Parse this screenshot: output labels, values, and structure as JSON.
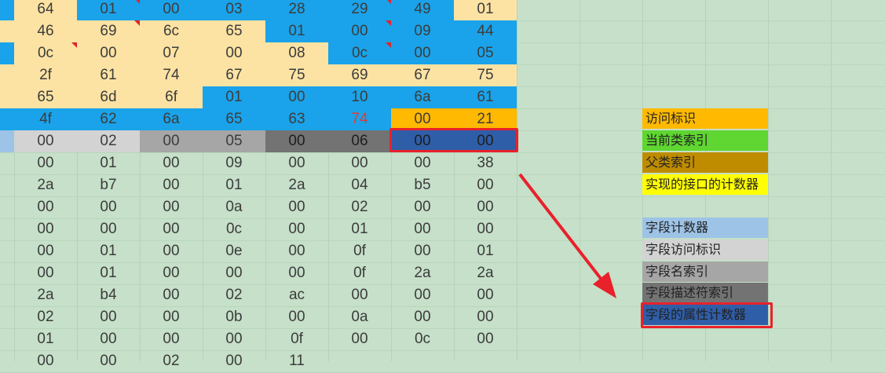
{
  "rows": [
    {
      "cells": [
        "64",
        "01",
        "00",
        "03",
        "28",
        "29",
        "49",
        "01"
      ],
      "bg": [
        "#fde3a3",
        "#1aa3ea",
        "#1aa3ea",
        "#1aa3ea",
        "#1aa3ea",
        "#1aa3ea",
        "#1aa3ea",
        "#fde3a3"
      ],
      "pre": "#1aa3ea",
      "flags": [
        1,
        5
      ]
    },
    {
      "cells": [
        "46",
        "69",
        "6c",
        "65",
        "01",
        "00",
        "09",
        "44"
      ],
      "bg": [
        "#fde3a3",
        "#fde3a3",
        "#fde3a3",
        "#fde3a3",
        "#1aa3ea",
        "#1aa3ea",
        "#1aa3ea",
        "#1aa3ea"
      ],
      "pre": "#fde3a3",
      "flags": [
        1,
        5
      ]
    },
    {
      "cells": [
        "0c",
        "00",
        "07",
        "00",
        "08",
        "0c",
        "00",
        "05"
      ],
      "bg": [
        "#fde3a3",
        "#fde3a3",
        "#fde3a3",
        "#fde3a3",
        "#fde3a3",
        "#1aa3ea",
        "#1aa3ea",
        "#1aa3ea"
      ],
      "pre": "#1aa3ea",
      "flags": [
        0,
        5
      ]
    },
    {
      "cells": [
        "2f",
        "61",
        "74",
        "67",
        "75",
        "69",
        "67",
        "75"
      ],
      "bg": [
        "#fde3a3",
        "#fde3a3",
        "#fde3a3",
        "#fde3a3",
        "#fde3a3",
        "#fde3a3",
        "#fde3a3",
        "#fde3a3"
      ],
      "pre": "#fde3a3",
      "flags": []
    },
    {
      "cells": [
        "65",
        "6d",
        "6f",
        "01",
        "00",
        "10",
        "6a",
        "61"
      ],
      "bg": [
        "#fde3a3",
        "#fde3a3",
        "#fde3a3",
        "#1aa3ea",
        "#1aa3ea",
        "#1aa3ea",
        "#1aa3ea",
        "#1aa3ea"
      ],
      "pre": "#fde3a3",
      "flags": []
    },
    {
      "cells": [
        "4f",
        "62",
        "6a",
        "65",
        "63",
        "74",
        "00",
        "21"
      ],
      "bg": [
        "#1aa3ea",
        "#1aa3ea",
        "#1aa3ea",
        "#1aa3ea",
        "#1aa3ea",
        "#1aa3ea",
        "#ffb900",
        "#ffb900"
      ],
      "pre": "#1aa3ea",
      "flags": [],
      "red": [
        5
      ]
    },
    {
      "cells": [
        "00",
        "02",
        "00",
        "05",
        "00",
        "06",
        "00",
        "00"
      ],
      "bg": [
        "#d3d3d3",
        "#d3d3d3",
        "#a6a6a6",
        "#a6a6a6",
        "#737373",
        "#737373",
        "#2f5ea8",
        "#2f5ea8"
      ],
      "pre": "#9dc3e6",
      "flags": []
    },
    {
      "cells": [
        "00",
        "01",
        "00",
        "09",
        "00",
        "00",
        "00",
        "38"
      ]
    },
    {
      "cells": [
        "2a",
        "b7",
        "00",
        "01",
        "2a",
        "04",
        "b5",
        "00"
      ]
    },
    {
      "cells": [
        "00",
        "00",
        "00",
        "0a",
        "00",
        "02",
        "00",
        "00"
      ]
    },
    {
      "cells": [
        "00",
        "00",
        "00",
        "0c",
        "00",
        "01",
        "00",
        "00"
      ]
    },
    {
      "cells": [
        "00",
        "01",
        "00",
        "0e",
        "00",
        "0f",
        "00",
        "01"
      ]
    },
    {
      "cells": [
        "00",
        "01",
        "00",
        "00",
        "00",
        "0f",
        "2a",
        "2a"
      ]
    },
    {
      "cells": [
        "2a",
        "b4",
        "00",
        "02",
        "ac",
        "00",
        "00",
        "00"
      ]
    },
    {
      "cells": [
        "02",
        "00",
        "00",
        "0b",
        "00",
        "0a",
        "00",
        "00"
      ]
    },
    {
      "cells": [
        "01",
        "00",
        "00",
        "00",
        "0f",
        "00",
        "0c",
        "00"
      ]
    },
    {
      "cells": [
        "00",
        "00",
        "02",
        "00",
        "11",
        "",
        "",
        ""
      ]
    }
  ],
  "legend": [
    {
      "label": "访问标识",
      "color": "#ffb900",
      "top": 138
    },
    {
      "label": "当前类索引",
      "color": "#5fd631",
      "top": 166
    },
    {
      "label": "父类索引",
      "color": "#bf8c00",
      "top": 194
    },
    {
      "label": "实现的接口的计数器",
      "color": "#ffff00",
      "top": 222
    },
    {
      "label": "字段计数器",
      "color": "#9dc3e6",
      "top": 277
    },
    {
      "label": "字段访问标识",
      "color": "#d3d3d3",
      "top": 305
    },
    {
      "label": "字段名索引",
      "color": "#a6a6a6",
      "top": 333
    },
    {
      "label": "字段描述符索引",
      "color": "#737373",
      "top": 360
    },
    {
      "label": "字段的属性计数器",
      "color": "#2f5ea8",
      "top": 388
    }
  ]
}
